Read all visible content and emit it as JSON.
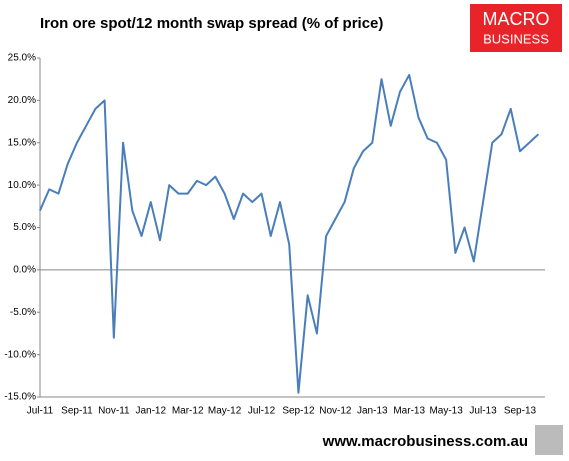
{
  "chart_data": {
    "type": "line",
    "title": "Iron ore spot/12 month swap spread (% of price)",
    "categories": [
      "Jul-11",
      null,
      null,
      null,
      "Sep-11",
      null,
      null,
      null,
      "Nov-11",
      null,
      null,
      null,
      "Jan-12",
      null,
      null,
      null,
      "Mar-12",
      null,
      null,
      null,
      "May-12",
      null,
      null,
      null,
      "Jul-12",
      null,
      null,
      null,
      "Sep-12",
      null,
      null,
      null,
      "Nov-12",
      null,
      null,
      null,
      "Jan-13",
      null,
      null,
      null,
      "Mar-13",
      null,
      null,
      null,
      "May-13",
      null,
      null,
      null,
      "Jul-13",
      null,
      null,
      null,
      "Sep-13",
      null,
      null
    ],
    "series": [
      {
        "name": "Spread",
        "color": "#4a7ebb",
        "values": [
          7,
          9.5,
          9,
          12.5,
          15,
          17,
          19,
          20,
          -8,
          15,
          7,
          4,
          8,
          3.5,
          10,
          9,
          9,
          10.5,
          10,
          11,
          9,
          6,
          9,
          8,
          9,
          4,
          8,
          3,
          -14.5,
          -3,
          -7.5,
          4,
          6,
          8,
          12,
          14,
          15,
          22.5,
          17,
          21,
          23,
          18,
          15.5,
          15,
          13,
          2,
          5,
          1,
          8,
          15,
          16,
          19,
          14,
          15,
          16
        ]
      }
    ],
    "ylim": [
      -15,
      25
    ],
    "yticks": [
      {
        "value": -15,
        "label": "-15.0%"
      },
      {
        "value": -10,
        "label": "-10.0%"
      },
      {
        "value": -5,
        "label": "-5.0%"
      },
      {
        "value": 0,
        "label": "0.0%"
      },
      {
        "value": 5,
        "label": "5.0%"
      },
      {
        "value": 10,
        "label": "10.0%"
      },
      {
        "value": 15,
        "label": "15.0%"
      },
      {
        "value": 20,
        "label": "20.0%"
      },
      {
        "value": 25,
        "label": "25.0%"
      }
    ],
    "zero_line": true
  },
  "logo": {
    "line1": "MACRO",
    "line2": "BUSINESS"
  },
  "footer": "www.macrobusiness.com.au"
}
